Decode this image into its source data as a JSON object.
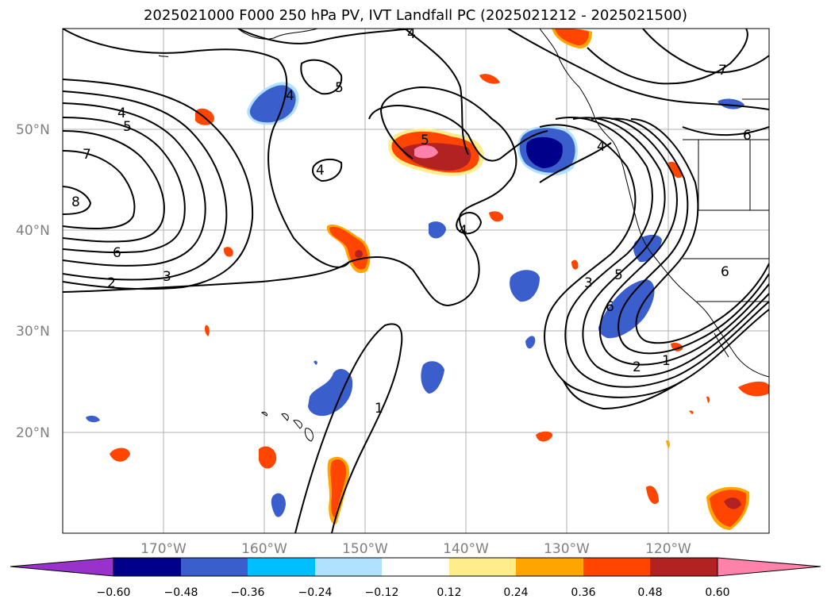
{
  "title": "2025021000 F000 250 hPa PV, IVT Landfall PC (2025021212 - 2025021500)",
  "lat_labels": [
    "50°N",
    "40°N",
    "30°N",
    "20°N"
  ],
  "lon_labels": [
    "170°W",
    "160°W",
    "150°W",
    "140°W",
    "130°W",
    "120°W"
  ],
  "colorbar": {
    "ticks": [
      "−0.60",
      "−0.48",
      "−0.36",
      "−0.24",
      "−0.12",
      "0.12",
      "0.24",
      "0.36",
      "0.48",
      "0.60"
    ],
    "colors": [
      "#9932cc",
      "#00008b",
      "#3a5fcd",
      "#00bfff",
      "#b0e2ff",
      "#ffffff",
      "#ffec8b",
      "#ffa500",
      "#ff4500",
      "#b22222",
      "#ff82ab"
    ]
  },
  "contour_labels": {
    "left": [
      "4",
      "5",
      "7",
      "8",
      "6",
      "2",
      "3"
    ],
    "middle": [
      "4",
      "5",
      "4",
      "5",
      "4",
      "1"
    ],
    "right": [
      "4",
      "7",
      "6",
      "4",
      "3",
      "5",
      "6",
      "2",
      "1"
    ]
  }
}
